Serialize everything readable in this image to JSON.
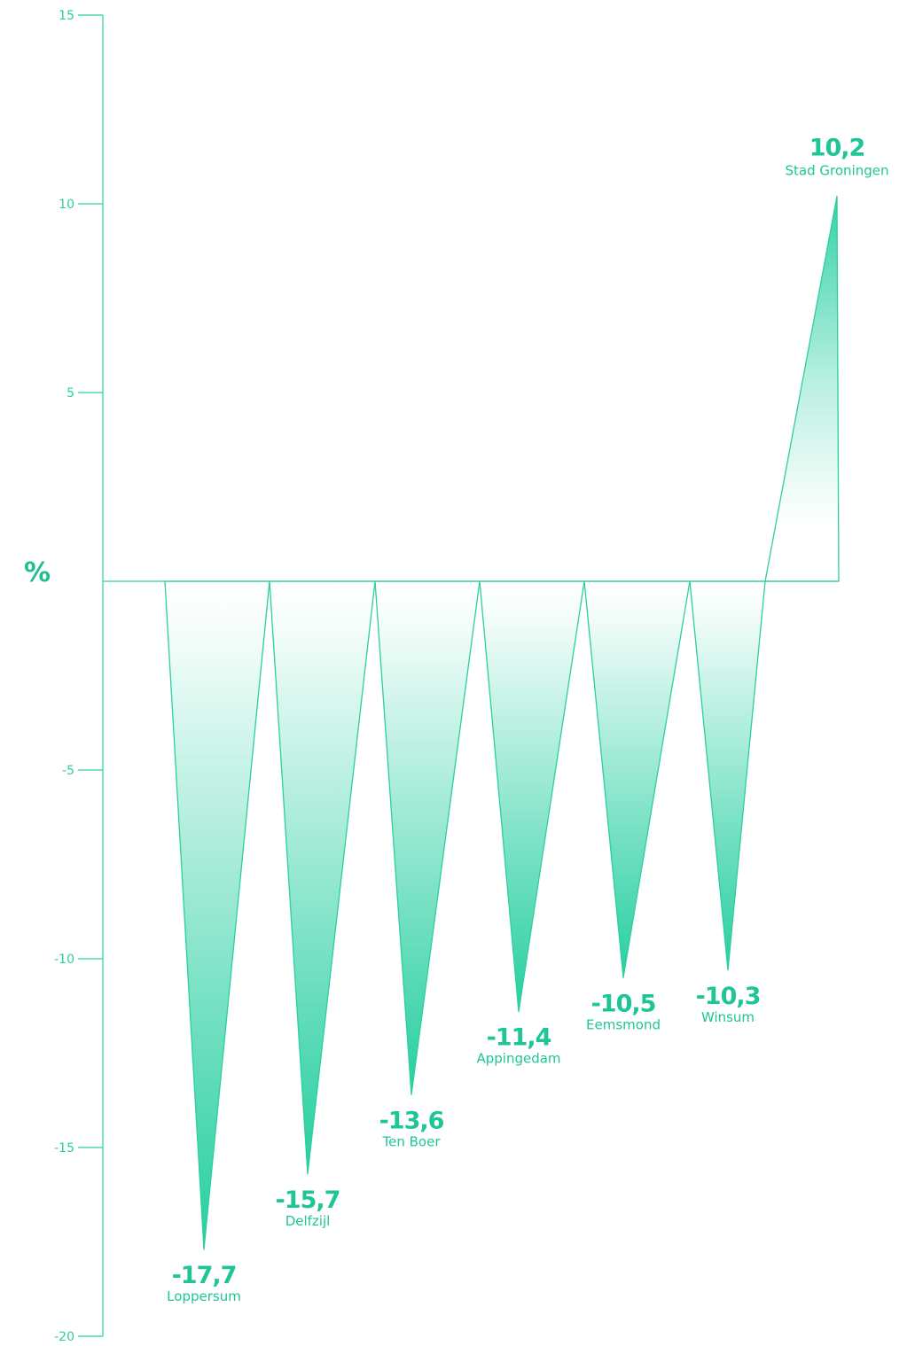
{
  "colors": {
    "accent": "#27cfa0",
    "line": "#2ccf9f",
    "label": "#1fc596"
  },
  "chart_data": {
    "type": "bar",
    "ylabel": "%",
    "ylim": [
      -20,
      15
    ],
    "yticks": [
      15,
      10,
      5,
      -5,
      -10,
      -15,
      -20
    ],
    "ytick_labels": [
      "15",
      "10",
      "5",
      "-5",
      "-10",
      "-15",
      "-20"
    ],
    "grid": false,
    "categories": [
      "Loppersum",
      "Delfzijl",
      "Ten Boer",
      "Appingedam",
      "Eemsmond",
      "Winsum",
      "Stad Groningen"
    ],
    "values": [
      -17.7,
      -15.7,
      -13.6,
      -11.4,
      -10.5,
      -10.3,
      10.2
    ],
    "value_labels": [
      "-17,7",
      "-15,7",
      "-13,6",
      "-11,4",
      "-10,5",
      "-10,3",
      "10,2"
    ]
  }
}
